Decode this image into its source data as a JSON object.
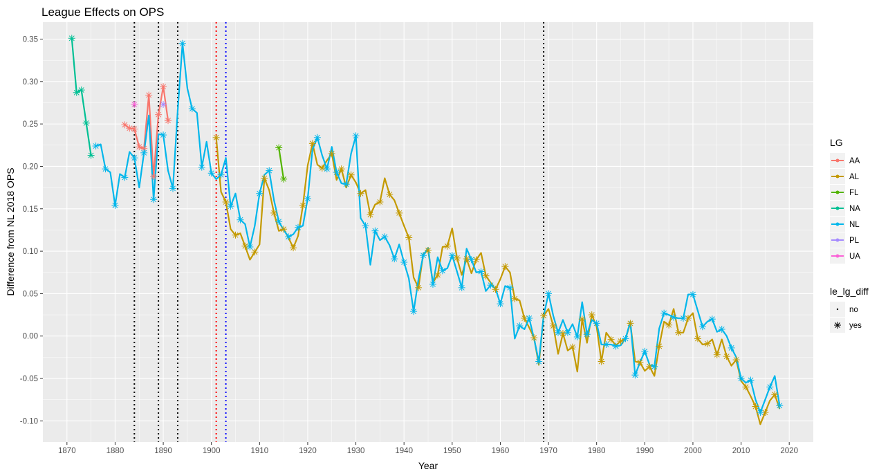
{
  "chart_data": {
    "type": "line",
    "title": "League Effects on OPS",
    "xlabel": "Year",
    "ylabel": "Difference from NL 2018 OPS",
    "xlim": [
      1865,
      2025
    ],
    "ylim": [
      -0.125,
      0.37
    ],
    "x_ticks": [
      1870,
      1880,
      1890,
      1900,
      1910,
      1920,
      1930,
      1940,
      1950,
      1960,
      1970,
      1980,
      1990,
      2000,
      2010,
      2020
    ],
    "y_ticks": [
      -0.1,
      -0.05,
      0.0,
      0.05,
      0.1,
      0.15,
      0.2,
      0.25,
      0.3,
      0.35
    ],
    "x_tick_labels": [
      "1870",
      "1880",
      "1890",
      "1900",
      "1910",
      "1920",
      "1930",
      "1940",
      "1950",
      "1960",
      "1970",
      "1980",
      "1990",
      "2000",
      "2010",
      "2020"
    ],
    "y_tick_labels": [
      "-0.10",
      "-0.05",
      "0.00",
      "0.05",
      "0.10",
      "0.15",
      "0.20",
      "0.25",
      "0.30",
      "0.35"
    ],
    "grid": true,
    "background": "#ebebeb",
    "vertical_lines": [
      {
        "x": 1884,
        "color": "#000000"
      },
      {
        "x": 1889,
        "color": "#000000"
      },
      {
        "x": 1893,
        "color": "#000000"
      },
      {
        "x": 1901,
        "color": "#ff0000"
      },
      {
        "x": 1903,
        "color": "#0000ff"
      },
      {
        "x": 1969,
        "color": "#000000"
      }
    ],
    "legend": {
      "placement": "right",
      "color_title": "LG",
      "shape_title": "le_lg_diff",
      "shape_entries": [
        "no",
        "yes"
      ]
    },
    "series": [
      {
        "name": "AA",
        "color": "#F8766D",
        "values": [
          [
            1882,
            0.249
          ],
          [
            1883,
            0.245
          ],
          [
            1884,
            0.244
          ],
          [
            1885,
            0.223
          ],
          [
            1886,
            0.221
          ],
          [
            1887,
            0.284
          ],
          [
            1888,
            0.188
          ],
          [
            1889,
            0.261
          ],
          [
            1890,
            0.294
          ],
          [
            1891,
            0.254
          ]
        ]
      },
      {
        "name": "AL",
        "color": "#C49A00",
        "values": [
          [
            1901,
            0.234
          ],
          [
            1902,
            0.17
          ],
          [
            1903,
            0.158
          ],
          [
            1904,
            0.126
          ],
          [
            1905,
            0.119
          ],
          [
            1906,
            0.121
          ],
          [
            1907,
            0.106
          ],
          [
            1908,
            0.09
          ],
          [
            1909,
            0.099
          ],
          [
            1910,
            0.108
          ],
          [
            1911,
            0.186
          ],
          [
            1912,
            0.172
          ],
          [
            1913,
            0.145
          ],
          [
            1914,
            0.124
          ],
          [
            1915,
            0.126
          ],
          [
            1916,
            0.116
          ],
          [
            1917,
            0.104
          ],
          [
            1918,
            0.118
          ],
          [
            1919,
            0.154
          ],
          [
            1920,
            0.201
          ],
          [
            1921,
            0.227
          ],
          [
            1922,
            0.202
          ],
          [
            1923,
            0.198
          ],
          [
            1924,
            0.207
          ],
          [
            1925,
            0.215
          ],
          [
            1926,
            0.184
          ],
          [
            1927,
            0.197
          ],
          [
            1928,
            0.175
          ],
          [
            1929,
            0.19
          ],
          [
            1930,
            0.181
          ],
          [
            1931,
            0.168
          ],
          [
            1932,
            0.172
          ],
          [
            1933,
            0.143
          ],
          [
            1934,
            0.155
          ],
          [
            1935,
            0.158
          ],
          [
            1936,
            0.186
          ],
          [
            1937,
            0.167
          ],
          [
            1938,
            0.16
          ],
          [
            1939,
            0.145
          ],
          [
            1940,
            0.13
          ],
          [
            1941,
            0.116
          ],
          [
            1942,
            0.069
          ],
          [
            1943,
            0.057
          ],
          [
            1944,
            0.097
          ],
          [
            1945,
            0.101
          ],
          [
            1946,
            0.063
          ],
          [
            1947,
            0.072
          ],
          [
            1948,
            0.105
          ],
          [
            1949,
            0.106
          ],
          [
            1950,
            0.127
          ],
          [
            1951,
            0.092
          ],
          [
            1952,
            0.072
          ],
          [
            1953,
            0.091
          ],
          [
            1954,
            0.074
          ],
          [
            1955,
            0.09
          ],
          [
            1956,
            0.098
          ],
          [
            1957,
            0.071
          ],
          [
            1958,
            0.063
          ],
          [
            1959,
            0.055
          ],
          [
            1960,
            0.067
          ],
          [
            1961,
            0.082
          ],
          [
            1962,
            0.075
          ],
          [
            1963,
            0.044
          ],
          [
            1964,
            0.042
          ],
          [
            1965,
            0.021
          ],
          [
            1966,
            0.01
          ],
          [
            1967,
            -0.002
          ],
          [
            1968,
            -0.034
          ],
          [
            1969,
            0.024
          ],
          [
            1970,
            0.032
          ],
          [
            1971,
            0.012
          ],
          [
            1972,
            -0.021
          ],
          [
            1973,
            0.003
          ],
          [
            1974,
            -0.017
          ],
          [
            1975,
            -0.013
          ],
          [
            1976,
            -0.042
          ],
          [
            1977,
            0.02
          ],
          [
            1978,
            -0.008
          ],
          [
            1979,
            0.025
          ],
          [
            1980,
            0.011
          ],
          [
            1981,
            -0.03
          ],
          [
            1982,
            0.004
          ],
          [
            1983,
            -0.004
          ],
          [
            1984,
            -0.011
          ],
          [
            1985,
            -0.006
          ],
          [
            1986,
            -0.003
          ],
          [
            1987,
            0.015
          ],
          [
            1988,
            -0.03
          ],
          [
            1989,
            -0.031
          ],
          [
            1990,
            -0.041
          ],
          [
            1991,
            -0.036
          ],
          [
            1992,
            -0.047
          ],
          [
            1993,
            -0.012
          ],
          [
            1994,
            0.017
          ],
          [
            1995,
            0.013
          ],
          [
            1996,
            0.032
          ],
          [
            1997,
            0.004
          ],
          [
            1998,
            0.004
          ],
          [
            1999,
            0.021
          ],
          [
            2000,
            0.027
          ],
          [
            2001,
            -0.003
          ],
          [
            2002,
            -0.01
          ],
          [
            2003,
            -0.009
          ],
          [
            2004,
            -0.004
          ],
          [
            2005,
            -0.022
          ],
          [
            2006,
            -0.004
          ],
          [
            2007,
            -0.024
          ],
          [
            2008,
            -0.035
          ],
          [
            2009,
            -0.028
          ],
          [
            2010,
            -0.053
          ],
          [
            2011,
            -0.06
          ],
          [
            2012,
            -0.071
          ],
          [
            2013,
            -0.083
          ],
          [
            2014,
            -0.104
          ],
          [
            2015,
            -0.09
          ],
          [
            2016,
            -0.076
          ],
          [
            2017,
            -0.069
          ],
          [
            2018,
            -0.086
          ]
        ]
      },
      {
        "name": "FL",
        "color": "#53B400",
        "values": [
          [
            1914,
            0.222
          ],
          [
            1915,
            0.185
          ]
        ]
      },
      {
        "name": "NA",
        "color": "#00C094",
        "values": [
          [
            1871,
            0.351
          ],
          [
            1872,
            0.287
          ],
          [
            1873,
            0.29
          ],
          [
            1874,
            0.251
          ],
          [
            1875,
            0.213
          ]
        ]
      },
      {
        "name": "NL",
        "color": "#00B6EB",
        "values": [
          [
            1876,
            0.224
          ],
          [
            1877,
            0.226
          ],
          [
            1878,
            0.197
          ],
          [
            1879,
            0.193
          ],
          [
            1880,
            0.154
          ],
          [
            1881,
            0.191
          ],
          [
            1882,
            0.187
          ],
          [
            1883,
            0.217
          ],
          [
            1884,
            0.21
          ],
          [
            1885,
            0.175
          ],
          [
            1886,
            0.216
          ],
          [
            1887,
            0.26
          ],
          [
            1888,
            0.161
          ],
          [
            1889,
            0.238
          ],
          [
            1890,
            0.237
          ],
          [
            1891,
            0.195
          ],
          [
            1892,
            0.174
          ],
          [
            1893,
            0.265
          ],
          [
            1894,
            0.345
          ],
          [
            1895,
            0.292
          ],
          [
            1896,
            0.268
          ],
          [
            1897,
            0.263
          ],
          [
            1898,
            0.199
          ],
          [
            1899,
            0.229
          ],
          [
            1900,
            0.192
          ],
          [
            1901,
            0.185
          ],
          [
            1902,
            0.19
          ],
          [
            1903,
            0.21
          ],
          [
            1904,
            0.153
          ],
          [
            1905,
            0.168
          ],
          [
            1906,
            0.137
          ],
          [
            1907,
            0.132
          ],
          [
            1908,
            0.105
          ],
          [
            1909,
            0.13
          ],
          [
            1910,
            0.168
          ],
          [
            1911,
            0.19
          ],
          [
            1912,
            0.195
          ],
          [
            1913,
            0.16
          ],
          [
            1914,
            0.135
          ],
          [
            1915,
            0.125
          ],
          [
            1916,
            0.117
          ],
          [
            1917,
            0.12
          ],
          [
            1918,
            0.128
          ],
          [
            1919,
            0.13
          ],
          [
            1920,
            0.162
          ],
          [
            1921,
            0.22
          ],
          [
            1922,
            0.234
          ],
          [
            1923,
            0.213
          ],
          [
            1924,
            0.197
          ],
          [
            1925,
            0.223
          ],
          [
            1926,
            0.193
          ],
          [
            1927,
            0.18
          ],
          [
            1928,
            0.179
          ],
          [
            1929,
            0.215
          ],
          [
            1930,
            0.236
          ],
          [
            1931,
            0.139
          ],
          [
            1932,
            0.13
          ],
          [
            1933,
            0.084
          ],
          [
            1934,
            0.124
          ],
          [
            1935,
            0.113
          ],
          [
            1936,
            0.117
          ],
          [
            1937,
            0.107
          ],
          [
            1938,
            0.091
          ],
          [
            1939,
            0.108
          ],
          [
            1940,
            0.087
          ],
          [
            1941,
            0.068
          ],
          [
            1942,
            0.029
          ],
          [
            1943,
            0.067
          ],
          [
            1944,
            0.095
          ],
          [
            1945,
            0.104
          ],
          [
            1946,
            0.061
          ],
          [
            1947,
            0.093
          ],
          [
            1948,
            0.077
          ],
          [
            1949,
            0.08
          ],
          [
            1950,
            0.095
          ],
          [
            1951,
            0.076
          ],
          [
            1952,
            0.057
          ],
          [
            1953,
            0.103
          ],
          [
            1954,
            0.09
          ],
          [
            1955,
            0.075
          ],
          [
            1956,
            0.076
          ],
          [
            1957,
            0.053
          ],
          [
            1958,
            0.06
          ],
          [
            1959,
            0.056
          ],
          [
            1960,
            0.038
          ],
          [
            1961,
            0.059
          ],
          [
            1962,
            0.057
          ],
          [
            1963,
            -0.003
          ],
          [
            1964,
            0.012
          ],
          [
            1965,
            0.008
          ],
          [
            1966,
            0.021
          ],
          [
            1967,
            -0.003
          ],
          [
            1968,
            -0.03
          ],
          [
            1969,
            0.024
          ],
          [
            1970,
            0.05
          ],
          [
            1971,
            0.024
          ],
          [
            1972,
            0.004
          ],
          [
            1973,
            0.019
          ],
          [
            1974,
            0.004
          ],
          [
            1975,
            0.014
          ],
          [
            1976,
            -0.001
          ],
          [
            1977,
            0.04
          ],
          [
            1978,
            0.002
          ],
          [
            1979,
            0.019
          ],
          [
            1980,
            0.015
          ],
          [
            1981,
            -0.01
          ],
          [
            1982,
            -0.01
          ],
          [
            1983,
            -0.01
          ],
          [
            1984,
            -0.012
          ],
          [
            1985,
            -0.011
          ],
          [
            1986,
            -0.003
          ],
          [
            1987,
            0.017
          ],
          [
            1988,
            -0.046
          ],
          [
            1989,
            -0.031
          ],
          [
            1990,
            -0.018
          ],
          [
            1991,
            -0.034
          ],
          [
            1992,
            -0.036
          ],
          [
            1993,
            0.009
          ],
          [
            1994,
            0.027
          ],
          [
            1995,
            0.025
          ],
          [
            1996,
            0.022
          ],
          [
            1997,
            0.021
          ],
          [
            1998,
            0.021
          ],
          [
            1999,
            0.049
          ],
          [
            2000,
            0.049
          ],
          [
            2001,
            0.03
          ],
          [
            2002,
            0.011
          ],
          [
            2003,
            0.017
          ],
          [
            2004,
            0.02
          ],
          [
            2005,
            0.005
          ],
          [
            2006,
            0.008
          ],
          [
            2007,
            0.0
          ],
          [
            2008,
            -0.014
          ],
          [
            2009,
            -0.025
          ],
          [
            2010,
            -0.05
          ],
          [
            2011,
            -0.055
          ],
          [
            2012,
            -0.052
          ],
          [
            2013,
            -0.075
          ],
          [
            2014,
            -0.09
          ],
          [
            2015,
            -0.075
          ],
          [
            2016,
            -0.06
          ],
          [
            2017,
            -0.047
          ],
          [
            2018,
            -0.082
          ]
        ]
      },
      {
        "name": "PL",
        "color": "#A58AFF",
        "values": [
          [
            1890,
            0.273
          ]
        ]
      },
      {
        "name": "UA",
        "color": "#FB61D7",
        "values": [
          [
            1884,
            0.273
          ]
        ]
      }
    ]
  }
}
